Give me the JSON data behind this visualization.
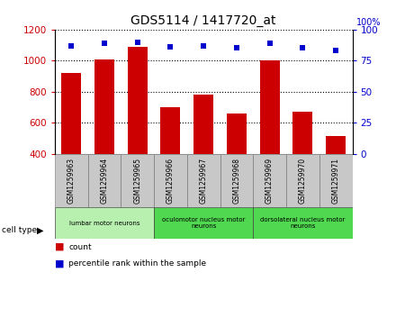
{
  "title": "GDS5114 / 1417720_at",
  "samples": [
    "GSM1259963",
    "GSM1259964",
    "GSM1259965",
    "GSM1259966",
    "GSM1259967",
    "GSM1259968",
    "GSM1259969",
    "GSM1259970",
    "GSM1259971"
  ],
  "counts": [
    920,
    1005,
    1090,
    700,
    780,
    660,
    1000,
    670,
    515
  ],
  "percentiles": [
    87,
    89,
    90,
    86,
    87,
    85,
    89,
    85,
    83
  ],
  "ylim_left": [
    400,
    1200
  ],
  "ylim_right": [
    0,
    100
  ],
  "yticks_left": [
    400,
    600,
    800,
    1000,
    1200
  ],
  "yticks_right": [
    0,
    25,
    50,
    75,
    100
  ],
  "cell_types": [
    {
      "label": "lumbar motor neurons",
      "start": 0,
      "end": 3,
      "color": "#b8f0b0"
    },
    {
      "label": "oculomotor nucleus motor\nneurons",
      "start": 3,
      "end": 6,
      "color": "#50d850"
    },
    {
      "label": "dorsolateral nucleus motor\nneurons",
      "start": 6,
      "end": 9,
      "color": "#50d850"
    }
  ],
  "bar_color": "#cc0000",
  "scatter_color": "#0000cc",
  "bar_width": 0.6,
  "gray_color": "#c8c8c8",
  "cell_type_label": "cell type",
  "legend_count": "count",
  "legend_percentile": "percentile rank within the sample",
  "right_axis_label": "100%"
}
